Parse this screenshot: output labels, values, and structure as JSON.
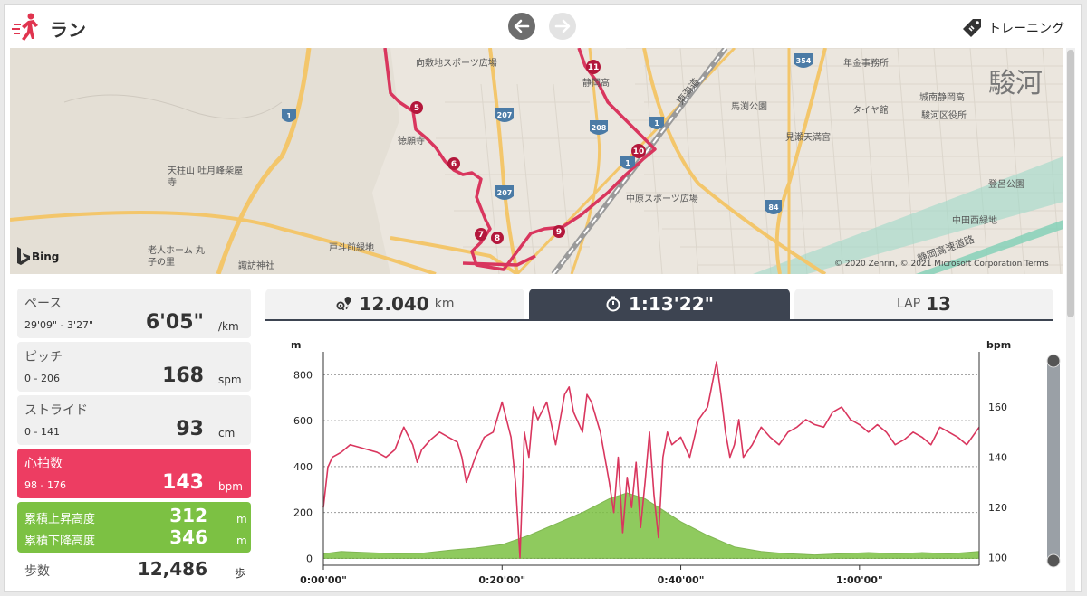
{
  "header": {
    "title": "ラン",
    "training_label": "トレーニング",
    "icons": {
      "app": "runner-icon",
      "prev": "arrow-left-icon",
      "next": "arrow-right-icon",
      "training": "tag-icon"
    }
  },
  "map": {
    "provider": "Bing",
    "credit": "© 2020 Zenrin, © 2021 Microsoft Corporation Terms",
    "region_text": "駿河",
    "labels": [
      "向敷地スポーツ広場",
      "静岡高",
      "東海道",
      "年金事務所",
      "城南静岡高",
      "駿河区役所",
      "馬渕公園",
      "タイヤ館",
      "見瀬天満宮",
      "徳願寺",
      "天柱山 吐月峰柴屋寺",
      "中原スポーツ広場",
      "登呂公園",
      "中田西緑地",
      "戸斗前緑地",
      "老人ホーム 丸子の里",
      "諏訪神社",
      "静岡高速道路"
    ],
    "road_numbers": [
      "1",
      "207",
      "208",
      "354",
      "84"
    ],
    "route_markers": [
      "5",
      "6",
      "7",
      "8",
      "9",
      "10",
      "11"
    ],
    "route_color": "#d9365e"
  },
  "stats": {
    "pace": {
      "label": "ペース",
      "range": "29'09\" - 3'27\"",
      "value": "6'05\"",
      "unit": "/km"
    },
    "pitch": {
      "label": "ピッチ",
      "range": "0 - 206",
      "value": "168",
      "unit": "spm"
    },
    "stride": {
      "label": "ストライド",
      "range": "0 - 141",
      "value": "93",
      "unit": "cm"
    },
    "heart_rate": {
      "label": "心拍数",
      "range": "98 - 176",
      "value": "143",
      "unit": "bpm",
      "color": "#ed3d62"
    },
    "elevation": {
      "ascent_label": "累積上昇高度",
      "ascent_value": "312",
      "ascent_unit": "m",
      "descent_label": "累積下降高度",
      "descent_value": "346",
      "descent_unit": "m",
      "color": "#7cc143"
    },
    "steps": {
      "label": "歩数",
      "value": "12,486",
      "unit": "歩"
    }
  },
  "tabs": {
    "distance": {
      "value": "12.040",
      "unit": "km",
      "icon": "route-pin-icon"
    },
    "time": {
      "value": "1:13'22\"",
      "icon": "stopwatch-icon"
    },
    "lap": {
      "prefix": "LAP",
      "value": "13"
    }
  },
  "chart_data": {
    "type": "line",
    "x_unit": "minutes",
    "x_ticks": [
      "0:00'00\"",
      "0:20'00\"",
      "0:40'00\"",
      "1:00'00\""
    ],
    "xlim": [
      0,
      73.4
    ],
    "y_left": {
      "label": "m",
      "ticks": [
        0,
        200,
        400,
        600,
        800
      ],
      "lim": [
        -30,
        900
      ]
    },
    "y_right": {
      "label": "bpm",
      "ticks": [
        100,
        120,
        140,
        160
      ],
      "lim": [
        97,
        182
      ]
    },
    "grid": true,
    "series": [
      {
        "kind": "area",
        "axis": "left",
        "color": "#7cc143",
        "x": [
          0,
          2,
          5,
          8,
          11,
          14,
          17,
          20,
          23,
          26,
          29,
          32,
          34,
          36,
          38,
          40,
          43,
          46,
          49,
          52,
          55,
          58,
          61,
          64,
          67,
          70,
          73.4
        ],
        "y": [
          20,
          30,
          25,
          20,
          22,
          35,
          45,
          60,
          100,
          150,
          200,
          260,
          285,
          260,
          210,
          160,
          100,
          50,
          30,
          20,
          15,
          20,
          25,
          20,
          25,
          20,
          30
        ]
      },
      {
        "kind": "line",
        "axis": "right",
        "color": "#d9365e",
        "x": [
          0,
          0.5,
          1,
          2,
          3,
          4,
          5,
          6,
          7,
          8,
          9,
          10,
          10.5,
          11,
          12,
          13,
          14,
          15,
          15.5,
          16,
          17,
          18,
          19,
          20,
          21,
          21.5,
          22,
          22.5,
          23,
          23.5,
          24,
          25,
          26,
          27,
          27.5,
          28,
          29,
          29.5,
          30,
          31,
          32,
          32.5,
          33,
          33.5,
          34,
          34.5,
          35,
          35.5,
          36,
          36.5,
          37,
          37.5,
          38,
          38.5,
          39,
          40,
          41,
          42,
          43,
          44,
          44.5,
          45,
          45.5,
          46,
          46.5,
          47,
          48,
          49,
          50,
          51,
          52,
          53,
          54,
          55,
          56,
          57,
          58,
          59,
          60,
          61,
          62,
          63,
          64,
          65,
          66,
          67,
          68,
          69,
          70,
          71,
          72,
          73.4
        ],
        "y": [
          120,
          136,
          140,
          142,
          145,
          144,
          143,
          142,
          140,
          143,
          152,
          145,
          138,
          143,
          147,
          150,
          148,
          146,
          140,
          130,
          140,
          148,
          150,
          162,
          148,
          130,
          100,
          150,
          140,
          160,
          155,
          162,
          145,
          165,
          168,
          158,
          150,
          165,
          162,
          150,
          130,
          118,
          140,
          110,
          132,
          120,
          138,
          112,
          130,
          150,
          125,
          108,
          140,
          150,
          145,
          148,
          140,
          155,
          160,
          178,
          165,
          150,
          140,
          145,
          155,
          140,
          145,
          152,
          148,
          145,
          150,
          152,
          155,
          153,
          152,
          158,
          160,
          155,
          153,
          150,
          153,
          150,
          145,
          147,
          150,
          148,
          145,
          152,
          150,
          148,
          145,
          152
        ]
      }
    ]
  }
}
